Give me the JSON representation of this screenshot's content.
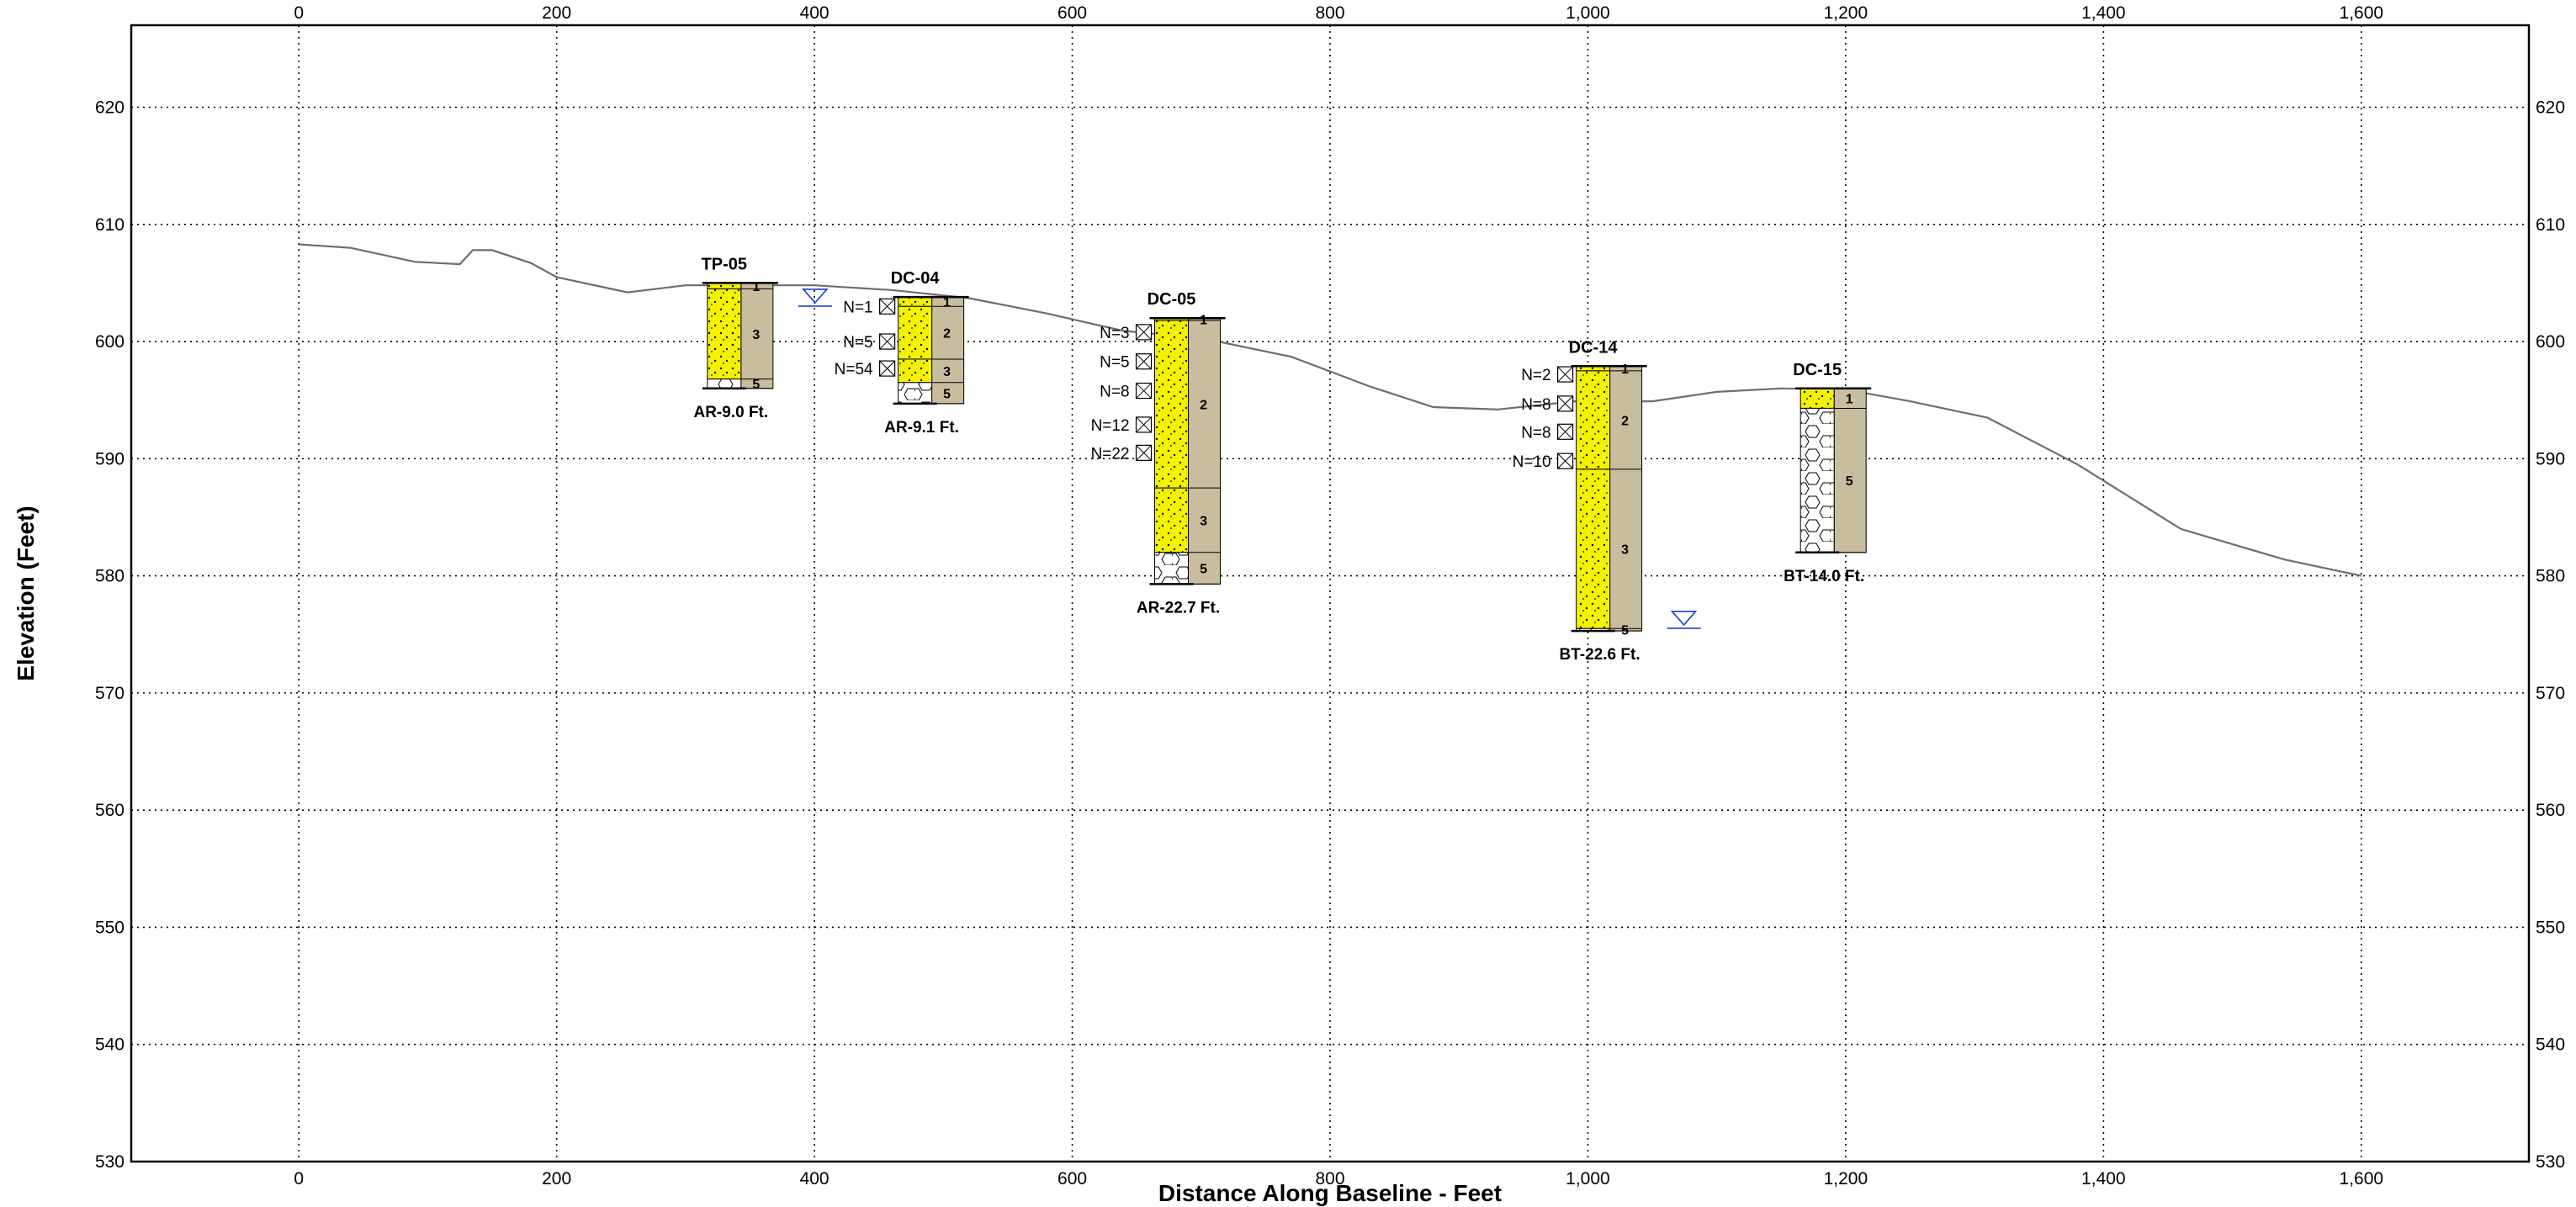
{
  "chart_data": {
    "type": "cross-section",
    "xlabel": "Distance Along Baseline - Feet",
    "ylabel": "Elevation (Feet)",
    "xlim": [
      -130,
      1730
    ],
    "ylim": [
      530,
      627
    ],
    "x_ticks": [
      0,
      200,
      400,
      600,
      800,
      1000,
      1200,
      1400,
      1600
    ],
    "x_tick_labels": [
      "0",
      "200",
      "400",
      "600",
      "800",
      "1,000",
      "1,200",
      "1,400",
      "1,600"
    ],
    "y_ticks": [
      530,
      540,
      550,
      560,
      570,
      580,
      590,
      600,
      610,
      620
    ],
    "grid": true,
    "ground_surface": {
      "x": [
        0,
        40,
        90,
        125,
        135,
        150,
        180,
        200,
        255,
        300,
        340,
        400,
        460,
        520,
        580,
        640,
        700,
        770,
        830,
        880,
        930,
        990,
        1050,
        1100,
        1150,
        1200,
        1250,
        1310,
        1380,
        1460,
        1540,
        1600
      ],
      "y": [
        608.3,
        608.0,
        606.8,
        606.6,
        607.8,
        607.8,
        606.7,
        605.5,
        604.2,
        604.8,
        604.8,
        604.8,
        604.4,
        603.7,
        602.4,
        600.9,
        600.3,
        598.7,
        596.2,
        594.4,
        594.2,
        594.9,
        594.9,
        595.7,
        596.0,
        595.9,
        594.9,
        593.5,
        589.5,
        584.0,
        581.4,
        580.0
      ]
    },
    "borings": [
      {
        "id": "TP-05",
        "x": 330,
        "top_elev": 605.0,
        "bottom_elev": 596.0,
        "bottom_label": "AR-9.0 Ft.",
        "layers": [
          {
            "num": "1",
            "bottom": 604.5
          },
          {
            "num": "3",
            "bottom": 596.8
          },
          {
            "num": "5",
            "bottom": 596.0
          }
        ],
        "water_level": 603.6,
        "samples": []
      },
      {
        "id": "DC-04",
        "x": 478,
        "top_elev": 603.8,
        "bottom_elev": 594.7,
        "bottom_label": "AR-9.1 Ft.",
        "layers": [
          {
            "num": "1",
            "bottom": 603.0
          },
          {
            "num": "2",
            "bottom": 598.5
          },
          {
            "num": "3",
            "bottom": 596.5
          },
          {
            "num": "5",
            "bottom": 594.7
          }
        ],
        "samples": [
          {
            "label": "N=1",
            "elev": 603.0
          },
          {
            "label": "N=5",
            "elev": 600.0
          },
          {
            "label": "N=54",
            "elev": 597.7
          }
        ]
      },
      {
        "id": "DC-05",
        "x": 677,
        "top_elev": 602.0,
        "bottom_elev": 579.3,
        "bottom_label": "AR-22.7 Ft.",
        "layers": [
          {
            "num": "1",
            "bottom": 601.8
          },
          {
            "num": "2",
            "bottom": 587.5
          },
          {
            "num": "3",
            "bottom": 582.0
          },
          {
            "num": "5",
            "bottom": 579.3
          }
        ],
        "samples": [
          {
            "label": "N=3",
            "elev": 600.8
          },
          {
            "label": "N=5",
            "elev": 598.3
          },
          {
            "label": "N=8",
            "elev": 595.8
          },
          {
            "label": "N=12",
            "elev": 592.9
          },
          {
            "label": "N=22",
            "elev": 590.5
          }
        ]
      },
      {
        "id": "DC-14",
        "x": 1004,
        "top_elev": 597.9,
        "bottom_elev": 575.3,
        "bottom_label": "BT-22.6 Ft.",
        "layers": [
          {
            "num": "1",
            "bottom": 597.5
          },
          {
            "num": "2",
            "bottom": 589.1
          },
          {
            "num": "3",
            "bottom": 575.5
          },
          {
            "num": "5",
            "bottom": 575.3
          }
        ],
        "water_level": 576.1,
        "samples": [
          {
            "label": "N=2",
            "elev": 597.2
          },
          {
            "label": "N=8",
            "elev": 594.7
          },
          {
            "label": "N=8",
            "elev": 592.3
          },
          {
            "label": "N=10",
            "elev": 589.8
          }
        ]
      },
      {
        "id": "DC-15",
        "x": 1178,
        "top_elev": 596.0,
        "bottom_elev": 582.0,
        "bottom_label": "BT-14.0 Ft.",
        "layers": [
          {
            "num": "1",
            "bottom": 594.3
          },
          {
            "num": "5",
            "bottom": 582.0
          }
        ],
        "samples": []
      }
    ]
  },
  "colors": {
    "sand": "#f4f200",
    "rock_column": "#c9bd9f",
    "ground_line": "#6e6e6e",
    "water_symbol": "#1a3ddb",
    "frame": "#000000"
  }
}
